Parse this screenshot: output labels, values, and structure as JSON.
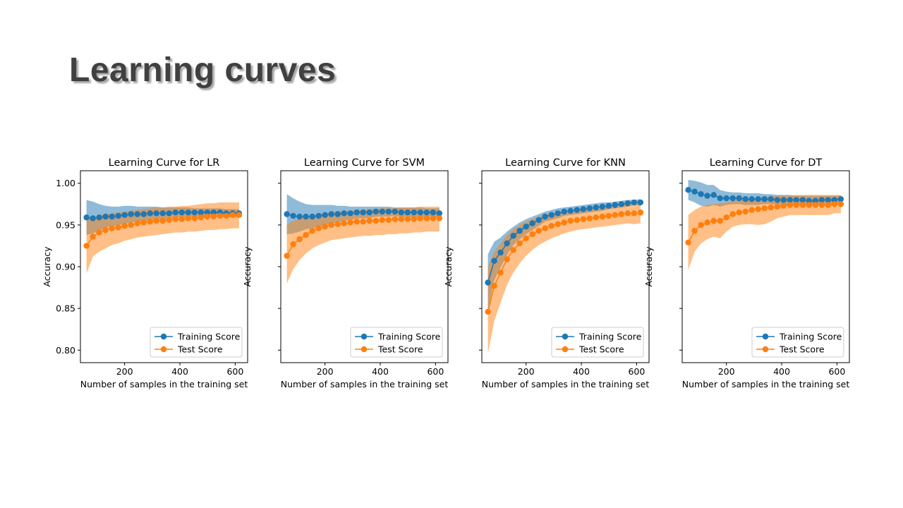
{
  "slide": {
    "title": "Learning curves"
  },
  "colors": {
    "training": "#1f77b4",
    "test": "#ff7f0e"
  },
  "chart_data": [
    {
      "type": "line",
      "title": "Learning Curve for LR",
      "xlabel": "Number of samples in the training set",
      "ylabel": "Accuracy",
      "xlim": [
        40,
        645
      ],
      "ylim": [
        0.785,
        1.015
      ],
      "xticks": [
        200,
        400,
        600
      ],
      "xtick_labels": [
        "200",
        "400",
        "600"
      ],
      "yticks": [
        0.8,
        0.85,
        0.9,
        0.95,
        1.0
      ],
      "ytick_labels": [
        "0.80",
        "0.85",
        "0.90",
        "0.95",
        "1.00"
      ],
      "show_y_labels": true,
      "legend": "lower right",
      "x": [
        62,
        85,
        108,
        131,
        154,
        177,
        200,
        223,
        246,
        269,
        292,
        315,
        338,
        361,
        384,
        407,
        430,
        453,
        476,
        499,
        522,
        545,
        568,
        591,
        614
      ],
      "series": [
        {
          "name": "Training Score",
          "values": [
            0.959,
            0.958,
            0.959,
            0.96,
            0.96,
            0.961,
            0.962,
            0.963,
            0.963,
            0.963,
            0.964,
            0.964,
            0.964,
            0.964,
            0.965,
            0.965,
            0.965,
            0.965,
            0.965,
            0.965,
            0.965,
            0.965,
            0.964,
            0.964,
            0.964
          ],
          "upper": [
            0.98,
            0.978,
            0.975,
            0.973,
            0.972,
            0.972,
            0.973,
            0.973,
            0.972,
            0.972,
            0.972,
            0.972,
            0.971,
            0.971,
            0.971,
            0.971,
            0.971,
            0.97,
            0.97,
            0.97,
            0.97,
            0.97,
            0.969,
            0.969,
            0.969
          ],
          "lower": [
            0.938,
            0.94,
            0.943,
            0.947,
            0.948,
            0.95,
            0.951,
            0.953,
            0.954,
            0.954,
            0.956,
            0.956,
            0.957,
            0.957,
            0.959,
            0.959,
            0.959,
            0.96,
            0.96,
            0.96,
            0.96,
            0.96,
            0.959,
            0.959,
            0.959
          ]
        },
        {
          "name": "Test Score",
          "values": [
            0.925,
            0.936,
            0.941,
            0.944,
            0.946,
            0.947,
            0.949,
            0.95,
            0.952,
            0.953,
            0.954,
            0.955,
            0.955,
            0.956,
            0.957,
            0.957,
            0.958,
            0.958,
            0.959,
            0.96,
            0.96,
            0.961,
            0.961,
            0.962,
            0.962
          ],
          "upper": [
            0.958,
            0.96,
            0.962,
            0.963,
            0.964,
            0.965,
            0.966,
            0.967,
            0.968,
            0.969,
            0.97,
            0.971,
            0.971,
            0.972,
            0.972,
            0.973,
            0.973,
            0.974,
            0.975,
            0.976,
            0.976,
            0.977,
            0.977,
            0.977,
            0.977
          ],
          "lower": [
            0.892,
            0.912,
            0.918,
            0.922,
            0.926,
            0.928,
            0.931,
            0.933,
            0.935,
            0.936,
            0.937,
            0.938,
            0.939,
            0.94,
            0.941,
            0.941,
            0.942,
            0.942,
            0.943,
            0.944,
            0.944,
            0.945,
            0.945,
            0.946,
            0.946
          ]
        }
      ]
    },
    {
      "type": "line",
      "title": "Learning Curve for SVM",
      "xlabel": "Number of samples in the training set",
      "ylabel": "Accuracy",
      "xlim": [
        40,
        645
      ],
      "ylim": [
        0.785,
        1.015
      ],
      "xticks": [
        200,
        400,
        600
      ],
      "xtick_labels": [
        "200",
        "400",
        "600"
      ],
      "yticks": [
        0.8,
        0.85,
        0.9,
        0.95,
        1.0
      ],
      "ytick_labels": [
        "0.80",
        "0.85",
        "0.90",
        "0.95",
        "1.00"
      ],
      "show_y_labels": false,
      "legend": "lower right",
      "x": [
        62,
        85,
        108,
        131,
        154,
        177,
        200,
        223,
        246,
        269,
        292,
        315,
        338,
        361,
        384,
        407,
        430,
        453,
        476,
        499,
        522,
        545,
        568,
        591,
        614
      ],
      "series": [
        {
          "name": "Training Score",
          "values": [
            0.963,
            0.961,
            0.96,
            0.96,
            0.96,
            0.961,
            0.962,
            0.963,
            0.963,
            0.964,
            0.964,
            0.965,
            0.965,
            0.965,
            0.966,
            0.966,
            0.966,
            0.966,
            0.965,
            0.965,
            0.965,
            0.965,
            0.965,
            0.965,
            0.964
          ],
          "upper": [
            0.987,
            0.982,
            0.978,
            0.975,
            0.974,
            0.974,
            0.974,
            0.974,
            0.973,
            0.973,
            0.972,
            0.972,
            0.972,
            0.972,
            0.972,
            0.972,
            0.972,
            0.971,
            0.971,
            0.971,
            0.971,
            0.971,
            0.97,
            0.97,
            0.97
          ],
          "lower": [
            0.939,
            0.94,
            0.942,
            0.945,
            0.946,
            0.948,
            0.95,
            0.952,
            0.953,
            0.955,
            0.956,
            0.958,
            0.958,
            0.958,
            0.96,
            0.96,
            0.96,
            0.961,
            0.959,
            0.959,
            0.959,
            0.959,
            0.96,
            0.96,
            0.958
          ]
        },
        {
          "name": "Test Score",
          "values": [
            0.913,
            0.927,
            0.933,
            0.938,
            0.943,
            0.946,
            0.948,
            0.95,
            0.951,
            0.952,
            0.953,
            0.954,
            0.954,
            0.955,
            0.955,
            0.956,
            0.956,
            0.957,
            0.957,
            0.957,
            0.957,
            0.958,
            0.958,
            0.958,
            0.958
          ],
          "upper": [
            0.95,
            0.955,
            0.958,
            0.96,
            0.962,
            0.963,
            0.964,
            0.965,
            0.966,
            0.967,
            0.967,
            0.968,
            0.968,
            0.969,
            0.969,
            0.97,
            0.97,
            0.97,
            0.971,
            0.971,
            0.971,
            0.972,
            0.972,
            0.972,
            0.972
          ],
          "lower": [
            0.88,
            0.897,
            0.908,
            0.916,
            0.922,
            0.926,
            0.929,
            0.932,
            0.933,
            0.934,
            0.935,
            0.936,
            0.937,
            0.937,
            0.938,
            0.938,
            0.939,
            0.939,
            0.94,
            0.94,
            0.941,
            0.941,
            0.942,
            0.942,
            0.942
          ]
        }
      ]
    },
    {
      "type": "line",
      "title": "Learning Curve for KNN",
      "xlabel": "Number of samples in the training set",
      "ylabel": "Accuracy",
      "xlim": [
        40,
        645
      ],
      "ylim": [
        0.785,
        1.015
      ],
      "xticks": [
        200,
        400,
        600
      ],
      "xtick_labels": [
        "200",
        "400",
        "600"
      ],
      "yticks": [
        0.8,
        0.85,
        0.9,
        0.95,
        1.0
      ],
      "ytick_labels": [
        "0.80",
        "0.85",
        "0.90",
        "0.95",
        "1.00"
      ],
      "show_y_labels": false,
      "legend": "lower right",
      "x": [
        62,
        85,
        108,
        131,
        154,
        177,
        200,
        223,
        246,
        269,
        292,
        315,
        338,
        361,
        384,
        407,
        430,
        453,
        476,
        499,
        522,
        545,
        568,
        591,
        614
      ],
      "series": [
        {
          "name": "Training Score",
          "values": [
            0.881,
            0.907,
            0.917,
            0.928,
            0.937,
            0.943,
            0.948,
            0.952,
            0.956,
            0.96,
            0.962,
            0.964,
            0.966,
            0.967,
            0.968,
            0.969,
            0.97,
            0.971,
            0.972,
            0.973,
            0.974,
            0.975,
            0.976,
            0.977,
            0.977
          ],
          "upper": [
            0.915,
            0.93,
            0.935,
            0.942,
            0.948,
            0.953,
            0.957,
            0.96,
            0.963,
            0.966,
            0.968,
            0.97,
            0.971,
            0.972,
            0.973,
            0.974,
            0.975,
            0.976,
            0.977,
            0.977,
            0.978,
            0.979,
            0.98,
            0.98,
            0.981
          ],
          "lower": [
            0.847,
            0.884,
            0.899,
            0.914,
            0.926,
            0.933,
            0.939,
            0.944,
            0.949,
            0.954,
            0.956,
            0.958,
            0.961,
            0.962,
            0.963,
            0.964,
            0.965,
            0.966,
            0.967,
            0.969,
            0.97,
            0.971,
            0.972,
            0.974,
            0.973
          ]
        },
        {
          "name": "Test Score",
          "values": [
            0.846,
            0.877,
            0.893,
            0.909,
            0.92,
            0.928,
            0.934,
            0.939,
            0.943,
            0.946,
            0.949,
            0.951,
            0.953,
            0.955,
            0.956,
            0.957,
            0.958,
            0.959,
            0.96,
            0.961,
            0.962,
            0.963,
            0.964,
            0.964,
            0.965
          ],
          "upper": [
            0.9,
            0.918,
            0.928,
            0.938,
            0.945,
            0.95,
            0.954,
            0.957,
            0.96,
            0.962,
            0.964,
            0.965,
            0.966,
            0.967,
            0.968,
            0.969,
            0.97,
            0.971,
            0.972,
            0.973,
            0.974,
            0.975,
            0.976,
            0.977,
            0.978
          ],
          "lower": [
            0.796,
            0.835,
            0.857,
            0.878,
            0.893,
            0.904,
            0.913,
            0.92,
            0.926,
            0.93,
            0.934,
            0.937,
            0.94,
            0.942,
            0.944,
            0.945,
            0.946,
            0.947,
            0.948,
            0.949,
            0.95,
            0.951,
            0.952,
            0.951,
            0.952
          ]
        }
      ]
    },
    {
      "type": "line",
      "title": "Learning Curve for DT",
      "xlabel": "Number of samples in the training set",
      "ylabel": "Accuracy",
      "xlim": [
        40,
        645
      ],
      "ylim": [
        0.785,
        1.015
      ],
      "xticks": [
        200,
        400,
        600
      ],
      "xtick_labels": [
        "200",
        "400",
        "600"
      ],
      "yticks": [
        0.8,
        0.85,
        0.9,
        0.95,
        1.0
      ],
      "ytick_labels": [
        "0.80",
        "0.85",
        "0.90",
        "0.95",
        "1.00"
      ],
      "show_y_labels": false,
      "legend": "lower right",
      "x": [
        62,
        85,
        108,
        131,
        154,
        177,
        200,
        223,
        246,
        269,
        292,
        315,
        338,
        361,
        384,
        407,
        430,
        453,
        476,
        499,
        522,
        545,
        568,
        591,
        614
      ],
      "series": [
        {
          "name": "Training Score",
          "values": [
            0.992,
            0.99,
            0.987,
            0.985,
            0.986,
            0.982,
            0.982,
            0.982,
            0.982,
            0.981,
            0.981,
            0.981,
            0.981,
            0.981,
            0.98,
            0.98,
            0.98,
            0.98,
            0.98,
            0.979,
            0.979,
            0.98,
            0.98,
            0.98,
            0.981
          ],
          "upper": [
            1.004,
            1.003,
            1.001,
            0.998,
            0.998,
            0.992,
            0.99,
            0.989,
            0.989,
            0.988,
            0.988,
            0.988,
            0.987,
            0.987,
            0.986,
            0.986,
            0.986,
            0.985,
            0.985,
            0.985,
            0.985,
            0.985,
            0.985,
            0.985,
            0.985
          ],
          "lower": [
            0.98,
            0.977,
            0.973,
            0.972,
            0.974,
            0.972,
            0.974,
            0.975,
            0.975,
            0.974,
            0.974,
            0.974,
            0.975,
            0.975,
            0.974,
            0.974,
            0.974,
            0.975,
            0.975,
            0.973,
            0.973,
            0.975,
            0.975,
            0.975,
            0.977
          ]
        },
        {
          "name": "Test Score",
          "values": [
            0.929,
            0.943,
            0.95,
            0.953,
            0.955,
            0.955,
            0.959,
            0.963,
            0.965,
            0.966,
            0.968,
            0.969,
            0.97,
            0.971,
            0.972,
            0.973,
            0.974,
            0.974,
            0.974,
            0.974,
            0.974,
            0.974,
            0.974,
            0.975,
            0.975
          ],
          "upper": [
            0.962,
            0.968,
            0.972,
            0.974,
            0.975,
            0.976,
            0.977,
            0.979,
            0.98,
            0.981,
            0.982,
            0.983,
            0.984,
            0.984,
            0.985,
            0.985,
            0.985,
            0.986,
            0.986,
            0.986,
            0.986,
            0.986,
            0.986,
            0.986,
            0.986
          ],
          "lower": [
            0.896,
            0.918,
            0.928,
            0.933,
            0.936,
            0.934,
            0.942,
            0.948,
            0.95,
            0.951,
            0.951,
            0.95,
            0.951,
            0.954,
            0.958,
            0.96,
            0.962,
            0.962,
            0.962,
            0.962,
            0.962,
            0.962,
            0.962,
            0.964,
            0.964
          ]
        }
      ]
    }
  ]
}
